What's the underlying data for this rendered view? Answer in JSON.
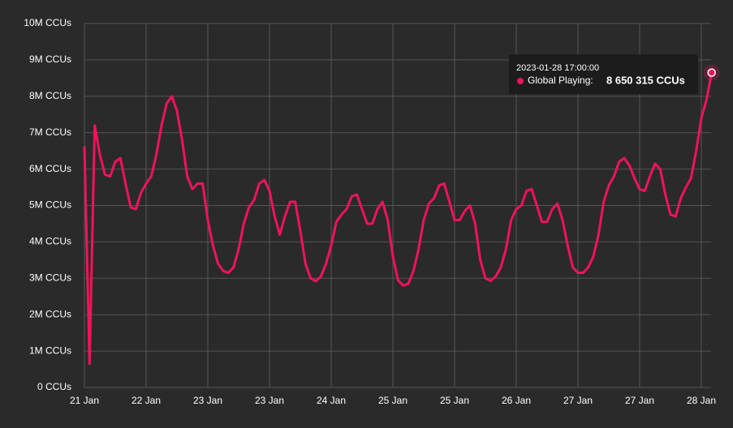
{
  "chart_data": {
    "type": "line",
    "categories": [
      "21 Jan",
      null,
      null,
      null,
      null,
      null,
      null,
      null,
      null,
      null,
      null,
      null,
      "22 Jan",
      null,
      null,
      null,
      null,
      null,
      null,
      null,
      null,
      null,
      null,
      null,
      "23 Jan",
      null,
      null,
      null,
      null,
      null,
      null,
      null,
      null,
      null,
      null,
      null,
      "23 Jan",
      null,
      null,
      null,
      null,
      null,
      null,
      null,
      null,
      null,
      null,
      null,
      "24 Jan",
      null,
      null,
      null,
      null,
      null,
      null,
      null,
      null,
      null,
      null,
      null,
      "25 Jan",
      null,
      null,
      null,
      null,
      null,
      null,
      null,
      null,
      null,
      null,
      null,
      "25 Jan",
      null,
      null,
      null,
      null,
      null,
      null,
      null,
      null,
      null,
      null,
      null,
      "26 Jan",
      null,
      null,
      null,
      null,
      null,
      null,
      null,
      null,
      null,
      null,
      null,
      "27 Jan",
      null,
      null,
      null,
      null,
      null,
      null,
      null,
      null,
      null,
      null,
      null,
      "27 Jan",
      null,
      null,
      null,
      null,
      null,
      null,
      null,
      null,
      null,
      null,
      null,
      "28 Jan",
      null,
      null
    ],
    "values": [
      6600000,
      650000,
      7200000,
      6400000,
      5850000,
      5800000,
      6200000,
      6300000,
      5600000,
      4950000,
      4900000,
      5350000,
      5600000,
      5800000,
      6400000,
      7200000,
      7800000,
      8000000,
      7600000,
      6800000,
      5800000,
      5450000,
      5600000,
      5600000,
      4600000,
      3900000,
      3400000,
      3200000,
      3150000,
      3300000,
      3800000,
      4500000,
      4950000,
      5150000,
      5600000,
      5700000,
      5400000,
      4700000,
      4200000,
      4700000,
      5100000,
      5100000,
      4300000,
      3400000,
      3000000,
      2920000,
      3050000,
      3400000,
      3900000,
      4550000,
      4750000,
      4900000,
      5250000,
      5300000,
      4900000,
      4500000,
      4500000,
      4900000,
      5100000,
      4600000,
      3600000,
      2950000,
      2800000,
      2850000,
      3200000,
      3800000,
      4600000,
      5050000,
      5200000,
      5550000,
      5600000,
      5100000,
      4600000,
      4600000,
      4850000,
      5000000,
      4500000,
      3500000,
      3000000,
      2930000,
      3050000,
      3300000,
      3800000,
      4600000,
      4900000,
      5000000,
      5400000,
      5450000,
      5000000,
      4550000,
      4550000,
      4900000,
      5050000,
      4600000,
      3900000,
      3300000,
      3150000,
      3150000,
      3300000,
      3600000,
      4200000,
      5100000,
      5550000,
      5800000,
      6200000,
      6300000,
      6100000,
      5750000,
      5450000,
      5400000,
      5800000,
      6150000,
      6000000,
      5300000,
      4750000,
      4700000,
      5200000,
      5500000,
      5750000,
      6500000,
      7400000,
      7900000,
      8650315
    ],
    "value_labels": [
      null,
      null,
      null,
      null,
      null,
      null,
      null,
      null,
      null,
      null,
      null,
      null,
      null,
      null,
      null,
      null,
      null,
      null,
      null,
      null,
      null,
      null,
      null,
      null,
      null,
      null,
      null,
      null,
      null,
      null,
      null,
      null,
      null,
      null,
      null,
      null,
      null,
      null,
      null,
      null,
      null,
      null,
      null,
      null,
      null,
      null,
      null,
      null,
      null,
      null,
      null,
      null,
      null,
      null,
      null,
      null,
      null,
      null,
      null,
      null,
      null,
      null,
      null,
      null,
      null,
      null,
      null,
      null,
      null,
      null,
      null,
      null,
      null,
      null,
      null,
      null,
      null,
      null,
      null,
      null,
      null,
      null,
      null,
      null,
      null,
      null,
      null,
      null,
      null,
      null,
      null,
      null,
      null,
      null,
      null,
      null,
      null,
      null,
      null,
      null,
      null,
      null,
      null,
      null,
      null,
      null,
      null,
      null,
      null,
      null,
      null,
      null,
      null,
      null,
      null,
      null,
      null,
      null,
      null,
      null,
      null,
      null,
      "8 650 315 CCUs"
    ],
    "color": "#f0145a",
    "ylim": [
      0,
      10000000
    ],
    "yticks": [
      {
        "value": 0,
        "label": "0 CCUs"
      },
      {
        "value": 1000000,
        "label": "1M CCUs"
      },
      {
        "value": 2000000,
        "label": "2M CCUs"
      },
      {
        "value": 3000000,
        "label": "3M CCUs"
      },
      {
        "value": 4000000,
        "label": "4M CCUs"
      },
      {
        "value": 5000000,
        "label": "5M CCUs"
      },
      {
        "value": 6000000,
        "label": "6M CCUs"
      },
      {
        "value": 7000000,
        "label": "7M CCUs"
      },
      {
        "value": 8000000,
        "label": "8M CCUs"
      },
      {
        "value": 9000000,
        "label": "9M CCUs"
      },
      {
        "value": 10000000,
        "label": "10M CCUs"
      }
    ],
    "grid": true,
    "tooltip": {
      "time": "2023-01-28 17:00:00",
      "label": "Global Playing:"
    }
  }
}
